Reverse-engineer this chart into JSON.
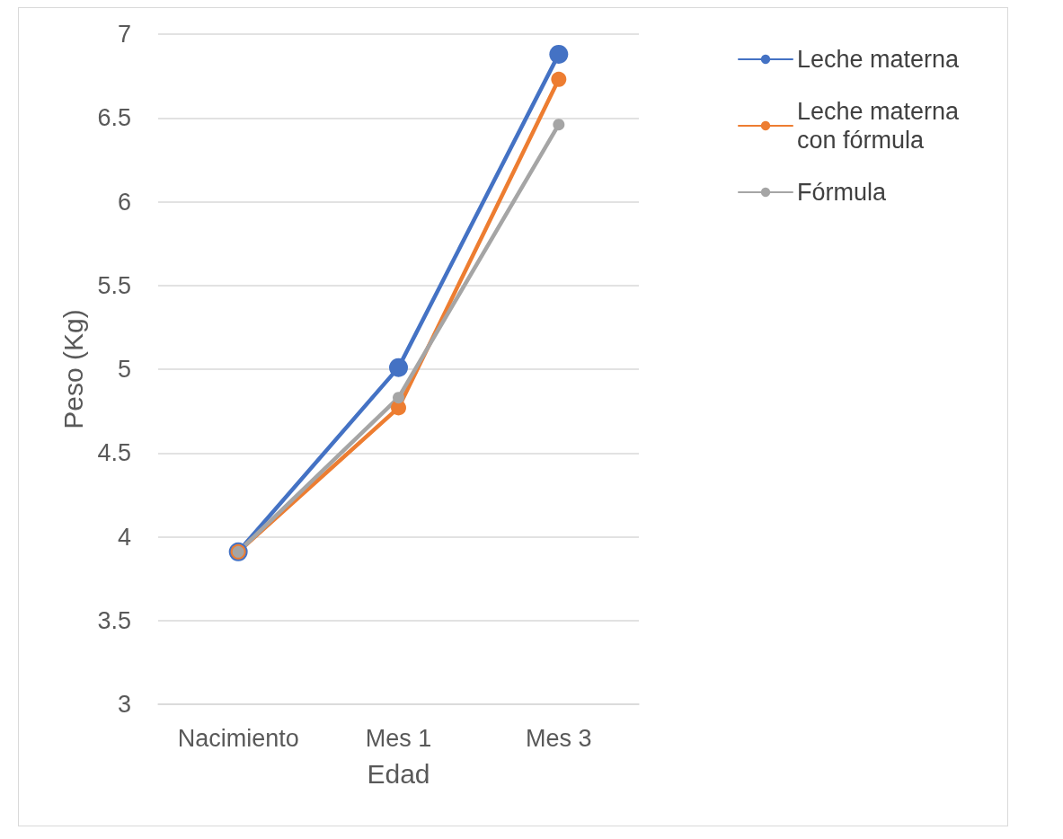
{
  "chart_data": {
    "type": "line",
    "xlabel": "Edad",
    "ylabel": "Peso (Kg)",
    "categories": [
      "Nacimiento",
      "Mes 1",
      "Mes 3"
    ],
    "series": [
      {
        "name": "Leche materna",
        "color": "#4472c4",
        "values": [
          3.91,
          5.01,
          6.88
        ]
      },
      {
        "name": "Leche materna con fórmula",
        "color": "#ed7d31",
        "values": [
          3.91,
          4.77,
          6.73
        ]
      },
      {
        "name": "Fórmula",
        "color": "#a5a5a5",
        "values": [
          3.91,
          4.83,
          6.46
        ]
      }
    ],
    "ylim": [
      3,
      7
    ],
    "yticks": [
      3,
      3.5,
      4,
      4.5,
      5,
      5.5,
      6,
      6.5,
      7
    ],
    "grid": "y",
    "legend": "top right",
    "marker": "circle",
    "line_style": "solid"
  }
}
